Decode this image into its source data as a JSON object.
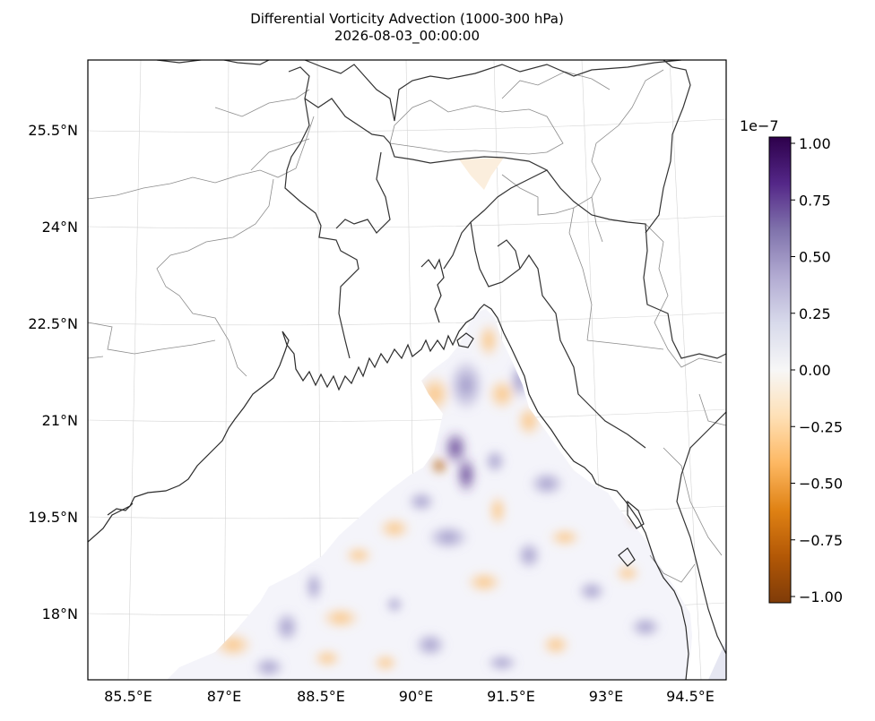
{
  "title": {
    "line1": "Differential Vorticity Advection (1000-300 hPa)",
    "line2": "2026-08-03_00:00:00"
  },
  "map": {
    "projection": "lambert-conformal",
    "lon_ticks": [
      "85.5°E",
      "87°E",
      "88.5°E",
      "90°E",
      "91.5°E",
      "93°E",
      "94.5°E"
    ],
    "lat_ticks": [
      "25.5°N",
      "24°N",
      "22.5°N",
      "21°N",
      "19.5°N",
      "18°N"
    ],
    "features": [
      "coastline",
      "country-borders",
      "state-borders",
      "gridlines"
    ],
    "field": "Differential Vorticity Advection",
    "field_domain": "ocean only (Bay of Bengal)"
  },
  "colorbar": {
    "exponent_label": "1e−7",
    "ticks": [
      "1.00",
      "0.75",
      "0.50",
      "0.25",
      "0.00",
      "−0.25",
      "−0.50",
      "−0.75",
      "−1.00"
    ],
    "values": [
      1.0,
      0.75,
      0.5,
      0.25,
      0.0,
      -0.25,
      -0.5,
      -0.75,
      -1.0
    ],
    "vmin": -1.0,
    "vmax": 1.0,
    "colormap": "PuOr",
    "colors": [
      "#2d004b",
      "#542788",
      "#8073ac",
      "#b2abd2",
      "#d8daeb",
      "#f7f7f7",
      "#fee0b6",
      "#fdb863",
      "#e08214",
      "#b35806",
      "#7f3b08"
    ]
  }
}
